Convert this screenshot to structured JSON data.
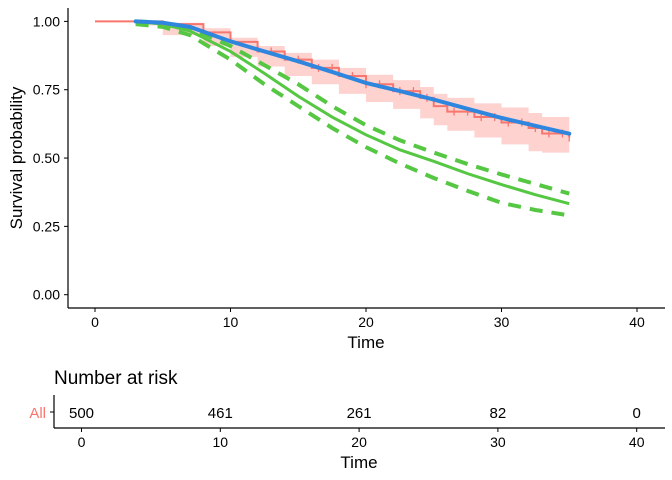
{
  "chart_data": [
    {
      "type": "line",
      "xlabel": "Time",
      "ylabel": "Survival probability",
      "xlim": [
        -2,
        42
      ],
      "ylim": [
        -0.05,
        1.05
      ],
      "x_ticks": [
        "0",
        "10",
        "20",
        "30",
        "40"
      ],
      "y_ticks": [
        "0.00",
        "0.25",
        "0.50",
        "0.75",
        "1.00"
      ],
      "grid": false,
      "legend": "none",
      "km": {
        "color": "#F8766D",
        "band_color": "#F8766D",
        "x": [
          0,
          3,
          5,
          8,
          10,
          12,
          14,
          16,
          18,
          20,
          22,
          24,
          25,
          26,
          28,
          30,
          32,
          33,
          35
        ],
        "y": [
          1.0,
          1.0,
          0.99,
          0.96,
          0.925,
          0.89,
          0.86,
          0.83,
          0.8,
          0.77,
          0.745,
          0.72,
          0.69,
          0.67,
          0.65,
          0.63,
          0.61,
          0.59,
          0.575
        ],
        "lower": [
          1.0,
          1.0,
          0.985,
          0.95,
          0.91,
          0.87,
          0.835,
          0.8,
          0.77,
          0.735,
          0.705,
          0.68,
          0.645,
          0.62,
          0.6,
          0.575,
          0.55,
          0.525,
          0.52
        ],
        "upper": [
          1.0,
          1.0,
          0.995,
          0.975,
          0.94,
          0.91,
          0.885,
          0.86,
          0.83,
          0.805,
          0.785,
          0.76,
          0.735,
          0.72,
          0.7,
          0.685,
          0.665,
          0.65,
          0.645
        ],
        "censor_times": [
          13,
          15,
          16.5,
          17.5,
          19,
          20,
          21,
          22.5,
          23.5,
          24.5,
          26.5,
          27.5,
          28.5,
          29.5,
          30.5,
          31.5,
          32.5,
          33.5,
          34.5,
          35
        ]
      },
      "fitted": {
        "color": "#2E86DE",
        "x": [
          3,
          5,
          7,
          10,
          12.5,
          15,
          17.5,
          20,
          22.5,
          25,
          27.5,
          30,
          32.5,
          35
        ],
        "y": [
          1.0,
          0.995,
          0.98,
          0.927,
          0.89,
          0.854,
          0.815,
          0.775,
          0.745,
          0.714,
          0.68,
          0.647,
          0.618,
          0.589
        ]
      },
      "model": {
        "color": "#55C743",
        "x": [
          3,
          5,
          7,
          10,
          12.5,
          15,
          17.5,
          20,
          22.5,
          25,
          27.5,
          30,
          32.5,
          35
        ],
        "y": [
          1.0,
          0.99,
          0.965,
          0.89,
          0.81,
          0.726,
          0.65,
          0.585,
          0.53,
          0.488,
          0.443,
          0.403,
          0.366,
          0.333
        ],
        "upper": [
          1.0,
          0.995,
          0.975,
          0.91,
          0.84,
          0.77,
          0.69,
          0.62,
          0.565,
          0.52,
          0.478,
          0.44,
          0.405,
          0.37
        ],
        "lower": [
          0.99,
          0.98,
          0.95,
          0.86,
          0.77,
          0.69,
          0.61,
          0.54,
          0.48,
          0.427,
          0.38,
          0.336,
          0.31,
          0.29
        ]
      }
    },
    {
      "type": "table",
      "title": "Number at risk",
      "row_label": "All",
      "row_label_color": "#F8766D",
      "x": [
        0,
        10,
        20,
        30,
        40
      ],
      "values": [
        "500",
        "461",
        "261",
        "82",
        "0"
      ],
      "x_ticks": [
        "0",
        "10",
        "20",
        "30",
        "40"
      ],
      "xlabel": "Time",
      "xlim": [
        -2,
        42
      ]
    }
  ]
}
